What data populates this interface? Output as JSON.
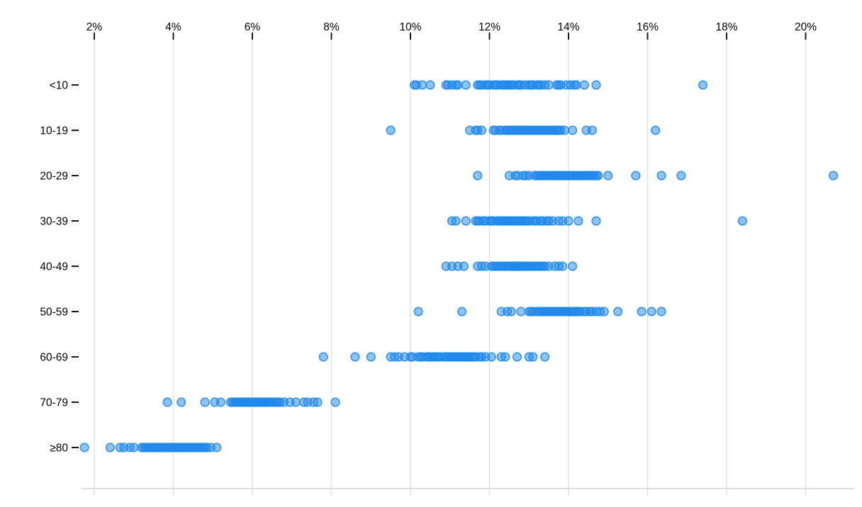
{
  "chart_data": {
    "type": "scatter",
    "subtype": "horizontal-strip-plot",
    "title": "",
    "xlabel": "",
    "ylabel": "",
    "legend": "none",
    "grid": "vertical-only",
    "x_axis": {
      "position": "top",
      "min": 2,
      "max": 20,
      "tick_step": 2,
      "tick_suffix": "%",
      "tick_values": [
        2,
        4,
        6,
        8,
        10,
        12,
        14,
        16,
        18,
        20
      ],
      "tick_labels": [
        "2%",
        "4%",
        "6%",
        "8%",
        "10%",
        "12%",
        "14%",
        "16%",
        "18%",
        "20%"
      ]
    },
    "categories": [
      "<10",
      "10-19",
      "20-29",
      "30-39",
      "40-49",
      "50-59",
      "60-69",
      "70-79",
      "≥80"
    ],
    "rows": [
      {
        "category": "<10",
        "values": [
          10.1,
          10.15,
          10.3,
          10.5,
          10.9,
          10.95,
          11.05,
          11.15,
          11.2,
          11.4,
          11.7,
          11.75,
          11.8,
          11.9,
          11.95,
          12.0,
          12.1,
          12.15,
          12.2,
          12.3,
          12.35,
          12.4,
          12.45,
          12.5,
          12.55,
          12.6,
          12.7,
          12.75,
          12.8,
          12.9,
          13.0,
          13.05,
          13.1,
          13.2,
          13.25,
          13.3,
          13.4,
          13.5,
          13.7,
          13.75,
          13.8,
          13.95,
          14.05,
          14.15,
          14.2,
          14.4,
          14.7,
          17.4
        ]
      },
      {
        "category": "10-19",
        "values": [
          9.5,
          11.5,
          11.65,
          11.7,
          11.8,
          12.1,
          12.15,
          12.25,
          12.3,
          12.4,
          12.45,
          12.5,
          12.55,
          12.6,
          12.65,
          12.7,
          12.75,
          12.8,
          12.85,
          12.9,
          12.95,
          13.0,
          13.05,
          13.1,
          13.15,
          13.2,
          13.25,
          13.3,
          13.35,
          13.4,
          13.45,
          13.5,
          13.55,
          13.6,
          13.65,
          13.7,
          13.75,
          13.8,
          13.9,
          14.1,
          14.45,
          14.6,
          16.2
        ]
      },
      {
        "category": "20-29",
        "values": [
          11.7,
          12.5,
          12.65,
          12.72,
          12.85,
          12.92,
          13.0,
          13.15,
          13.2,
          13.25,
          13.3,
          13.35,
          13.4,
          13.45,
          13.5,
          13.55,
          13.6,
          13.65,
          13.7,
          13.75,
          13.8,
          13.85,
          13.9,
          13.95,
          14.0,
          14.05,
          14.1,
          14.15,
          14.2,
          14.25,
          14.3,
          14.35,
          14.4,
          14.45,
          14.5,
          14.55,
          14.6,
          14.65,
          14.7,
          14.75,
          15.0,
          15.7,
          16.35,
          16.85,
          20.7
        ]
      },
      {
        "category": "30-39",
        "values": [
          11.05,
          11.15,
          11.4,
          11.65,
          11.7,
          11.75,
          11.85,
          11.9,
          12.0,
          12.05,
          12.1,
          12.2,
          12.25,
          12.3,
          12.35,
          12.4,
          12.45,
          12.5,
          12.55,
          12.6,
          12.65,
          12.7,
          12.75,
          12.8,
          12.85,
          12.9,
          12.95,
          13.0,
          13.1,
          13.15,
          13.2,
          13.3,
          13.35,
          13.45,
          13.5,
          13.6,
          13.75,
          13.85,
          14.0,
          14.25,
          14.7,
          18.4
        ]
      },
      {
        "category": "40-49",
        "values": [
          10.9,
          11.05,
          11.2,
          11.35,
          11.7,
          11.8,
          11.9,
          12.05,
          12.1,
          12.15,
          12.2,
          12.25,
          12.3,
          12.35,
          12.4,
          12.45,
          12.5,
          12.55,
          12.6,
          12.62,
          12.65,
          12.7,
          12.75,
          12.8,
          12.85,
          12.88,
          12.9,
          12.95,
          13.0,
          13.05,
          13.1,
          13.15,
          13.2,
          13.25,
          13.3,
          13.35,
          13.4,
          13.5,
          13.65,
          13.75,
          13.85,
          14.1
        ]
      },
      {
        "category": "50-59",
        "values": [
          10.2,
          11.3,
          12.3,
          12.45,
          12.55,
          12.8,
          13.0,
          13.05,
          13.1,
          13.2,
          13.25,
          13.3,
          13.35,
          13.4,
          13.45,
          13.5,
          13.55,
          13.6,
          13.65,
          13.7,
          13.75,
          13.8,
          13.85,
          13.9,
          13.95,
          14.0,
          14.05,
          14.1,
          14.15,
          14.2,
          14.25,
          14.3,
          14.4,
          14.45,
          14.55,
          14.6,
          14.7,
          14.8,
          14.9,
          15.25,
          15.85,
          16.1,
          16.35
        ]
      },
      {
        "category": "60-69",
        "values": [
          7.8,
          8.6,
          9.0,
          9.5,
          9.6,
          9.7,
          9.85,
          10.0,
          10.05,
          10.2,
          10.25,
          10.3,
          10.4,
          10.45,
          10.5,
          10.55,
          10.6,
          10.65,
          10.7,
          10.75,
          10.85,
          10.9,
          10.95,
          11.0,
          11.05,
          11.1,
          11.15,
          11.2,
          11.25,
          11.3,
          11.35,
          11.4,
          11.45,
          11.5,
          11.55,
          11.6,
          11.65,
          11.75,
          11.8,
          11.9,
          12.05,
          12.3,
          12.4,
          12.7,
          13.0,
          13.1,
          13.4
        ]
      },
      {
        "category": "70-79",
        "values": [
          3.85,
          4.2,
          4.8,
          5.05,
          5.2,
          5.45,
          5.5,
          5.55,
          5.6,
          5.62,
          5.65,
          5.7,
          5.75,
          5.8,
          5.85,
          5.88,
          5.9,
          5.95,
          6.0,
          6.05,
          6.1,
          6.12,
          6.15,
          6.2,
          6.25,
          6.3,
          6.35,
          6.38,
          6.4,
          6.45,
          6.5,
          6.55,
          6.6,
          6.65,
          6.7,
          6.8,
          6.95,
          7.1,
          7.3,
          7.4,
          7.55,
          7.65,
          8.1
        ]
      },
      {
        "category": "≥80",
        "values": [
          1.75,
          2.4,
          2.65,
          2.75,
          2.9,
          3.0,
          3.2,
          3.25,
          3.3,
          3.35,
          3.4,
          3.45,
          3.5,
          3.55,
          3.6,
          3.65,
          3.7,
          3.75,
          3.8,
          3.85,
          3.9,
          3.95,
          4.0,
          4.05,
          4.1,
          4.15,
          4.2,
          4.25,
          4.3,
          4.35,
          4.4,
          4.45,
          4.5,
          4.55,
          4.6,
          4.65,
          4.7,
          4.75,
          4.8,
          4.85,
          4.95,
          5.1
        ]
      }
    ],
    "style": {
      "dot_color": "#1f88ec",
      "dot_fill_opacity": 0.5,
      "dot_stroke_opacity": 0.85,
      "grid_color": "#e3e3e3",
      "axis_line_color": "#d6d6d6",
      "tick_color": "#1a1a1a",
      "text_color": "#000000",
      "background": "#ffffff"
    }
  }
}
